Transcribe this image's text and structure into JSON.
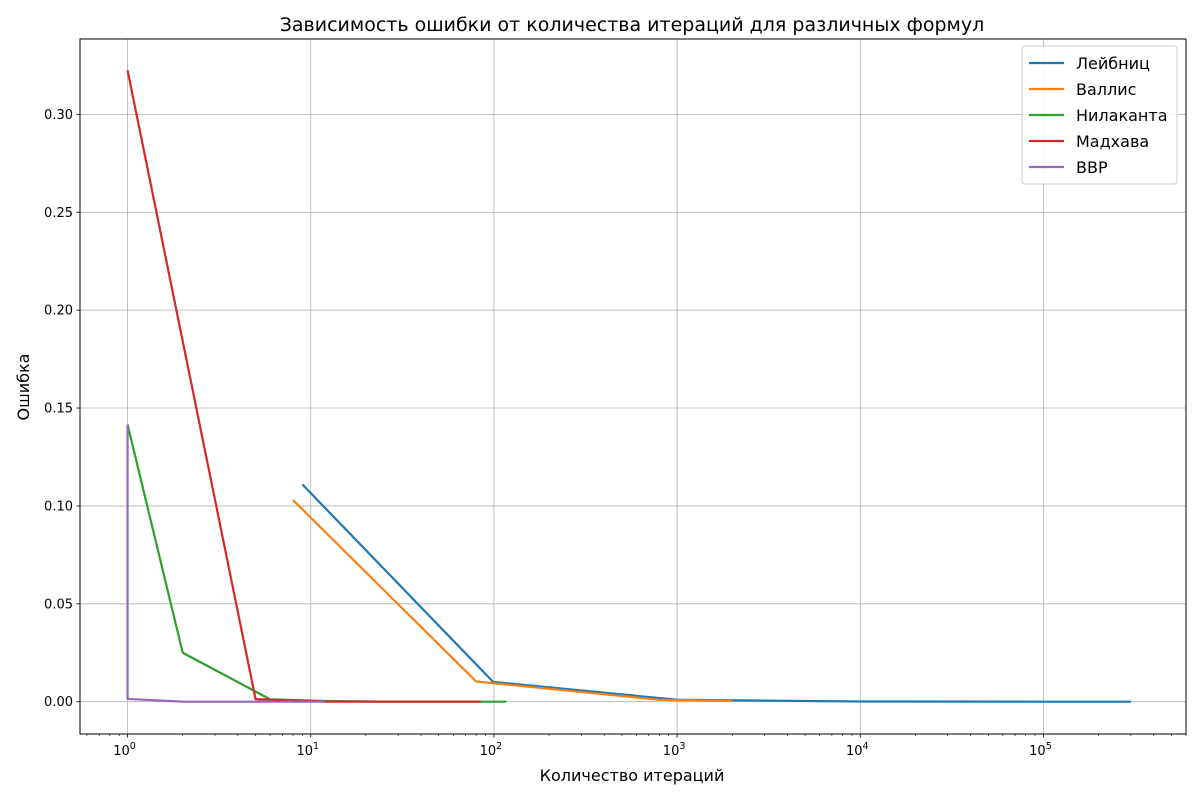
{
  "chart_data": {
    "type": "line",
    "title": "Зависимость ошибки от количества итераций для различных формул",
    "xlabel": "Количество итераций",
    "ylabel": "Ошибка",
    "xscale": "log",
    "xlim": [
      0.55,
      600000
    ],
    "ylim": [
      -0.0165,
      0.3385
    ],
    "grid": true,
    "legend_position": "top-right",
    "x_ticks": [
      {
        "value": 1,
        "base": "10",
        "exp": "0"
      },
      {
        "value": 10,
        "base": "10",
        "exp": "1"
      },
      {
        "value": 100,
        "base": "10",
        "exp": "2"
      },
      {
        "value": 1000,
        "base": "10",
        "exp": "3"
      },
      {
        "value": 10000,
        "base": "10",
        "exp": "4"
      },
      {
        "value": 100000,
        "base": "10",
        "exp": "5"
      }
    ],
    "y_ticks": [
      {
        "value": 0.0,
        "label": "0.00"
      },
      {
        "value": 0.05,
        "label": "0.05"
      },
      {
        "value": 0.1,
        "label": "0.10"
      },
      {
        "value": 0.15,
        "label": "0.15"
      },
      {
        "value": 0.2,
        "label": "0.20"
      },
      {
        "value": 0.25,
        "label": "0.25"
      },
      {
        "value": 0.3,
        "label": "0.30"
      }
    ],
    "series": [
      {
        "name": "Лейбниц",
        "color": "#1f77b4",
        "x": [
          9,
          99,
          999,
          9999,
          99999,
          300000
        ],
        "y": [
          0.111,
          0.0101,
          0.001,
          0.0001,
          1e-05,
          3.3e-06
        ]
      },
      {
        "name": "Валлис",
        "color": "#ff7f0e",
        "x": [
          8,
          80,
          800,
          2000
        ],
        "y": [
          0.103,
          0.0103,
          0.00098,
          0.00039
        ]
      },
      {
        "name": "Нилаканта",
        "color": "#2ca02c",
        "x": [
          1,
          2,
          6,
          12,
          24,
          117
        ],
        "y": [
          0.1416,
          0.025,
          0.0012,
          0.00035,
          5e-05,
          1e-07
        ]
      },
      {
        "name": "Мадхава",
        "color": "#d62728",
        "x": [
          1,
          5,
          12,
          24,
          85
        ],
        "y": [
          0.3225,
          0.0013,
          2e-05,
          1e-07,
          1e-07
        ]
      },
      {
        "name": "BBP",
        "color": "#9467bd",
        "x": [
          1,
          1,
          2,
          6,
          12
        ],
        "y": [
          0.1416,
          0.0014,
          5e-05,
          1e-07,
          1e-07
        ]
      }
    ]
  }
}
